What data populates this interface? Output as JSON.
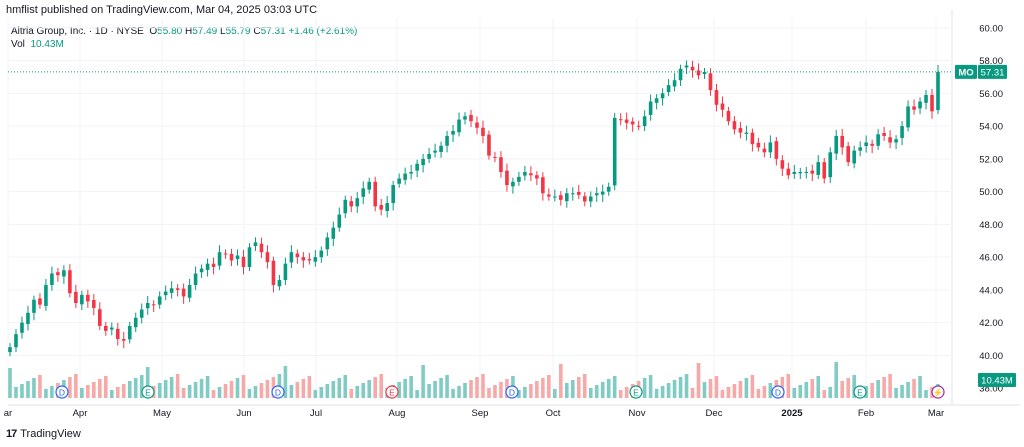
{
  "header": {
    "published": "hmflist published on TradingView.com, Mar 04, 2025 03:03 UTC"
  },
  "legend": {
    "name": "Altria Group, Inc. · 1D · NYSE",
    "o_label": "O",
    "o_val": "55.80",
    "h_label": "H",
    "h_val": "57.49",
    "l_label": "L",
    "l_val": "55.79",
    "c_label": "C",
    "c_val": "57.31",
    "change": "+1.46 (+2.61%)",
    "vol_label": "Vol",
    "vol_val": "10.43M"
  },
  "price_label": {
    "symbol": "MO",
    "value": "57.31"
  },
  "volume_label": "10.43M",
  "brand": {
    "name": "TradingView",
    "logo": "17"
  },
  "colors": {
    "up": "#089981",
    "down": "#f23645",
    "upVol": "#80cbc4",
    "downVol": "#f7a9a7",
    "axis": "#131722",
    "grid": "#f0f3fa"
  },
  "chart_data": {
    "type": "candlestick",
    "title": "Altria Group, Inc. · 1D · NYSE",
    "y_ticks": [
      "60.00",
      "58.00",
      "56.00",
      "54.00",
      "52.00",
      "50.00",
      "48.00",
      "46.00",
      "44.00",
      "42.00",
      "40.00",
      "38.00"
    ],
    "ylim": [
      37.4,
      60.6
    ],
    "x_ticks": [
      "ar",
      "Apr",
      "May",
      "Jun",
      "Jul",
      "Aug",
      "Sep",
      "Oct",
      "Nov",
      "Dec",
      "2025",
      "Feb",
      "Mar"
    ],
    "last_close": 57.31,
    "series": [
      {
        "name": "MO",
        "values": [
          40.5,
          41.3,
          42.0,
          42.6,
          43.4,
          43.1,
          44.3,
          45.0,
          44.9,
          45.2,
          43.8,
          43.2,
          43.7,
          43.3,
          42.9,
          41.8,
          41.5,
          41.7,
          41.0,
          40.9,
          41.8,
          42.3,
          42.8,
          43.2,
          43.1,
          43.6,
          43.9,
          44.1,
          44.0,
          43.6,
          44.3,
          45.0,
          45.3,
          45.6,
          45.4,
          46.3,
          46.2,
          45.8,
          46.1,
          45.4,
          46.6,
          46.9,
          46.3,
          45.7,
          44.3,
          44.6,
          45.6,
          46.3,
          46.0,
          45.8,
          45.8,
          46.0,
          46.4,
          47.2,
          47.8,
          48.6,
          49.5,
          49.1,
          49.6,
          50.2,
          50.6,
          49.1,
          48.9,
          49.3,
          50.4,
          50.8,
          51.1,
          51.2,
          51.7,
          52.0,
          52.3,
          52.5,
          52.8,
          53.4,
          53.7,
          54.4,
          54.6,
          54.3,
          53.9,
          53.4,
          52.2,
          52.1,
          51.2,
          50.4,
          50.6,
          50.9,
          51.2,
          51.0,
          50.8,
          49.9,
          49.7,
          49.7,
          49.5,
          49.9,
          49.9,
          49.8,
          49.4,
          49.7,
          49.9,
          50.0,
          50.3,
          54.5,
          54.4,
          54.2,
          54.1,
          54.0,
          54.6,
          55.5,
          55.7,
          56.0,
          56.5,
          56.8,
          57.5,
          57.7,
          57.4,
          57.1,
          57.3,
          56.2,
          55.3,
          55.0,
          54.3,
          53.8,
          53.6,
          53.6,
          52.9,
          52.7,
          52.4,
          53.0,
          52.0,
          51.4,
          51.0,
          51.2,
          51.2,
          51.2,
          51.1,
          51.8,
          50.8,
          52.4,
          53.4,
          52.7,
          51.8,
          52.5,
          52.7,
          53.0,
          52.8,
          53.5,
          53.4,
          53.0,
          53.2,
          54.0,
          55.2,
          55.0,
          55.5,
          55.9,
          54.9,
          57.31
        ]
      }
    ]
  }
}
